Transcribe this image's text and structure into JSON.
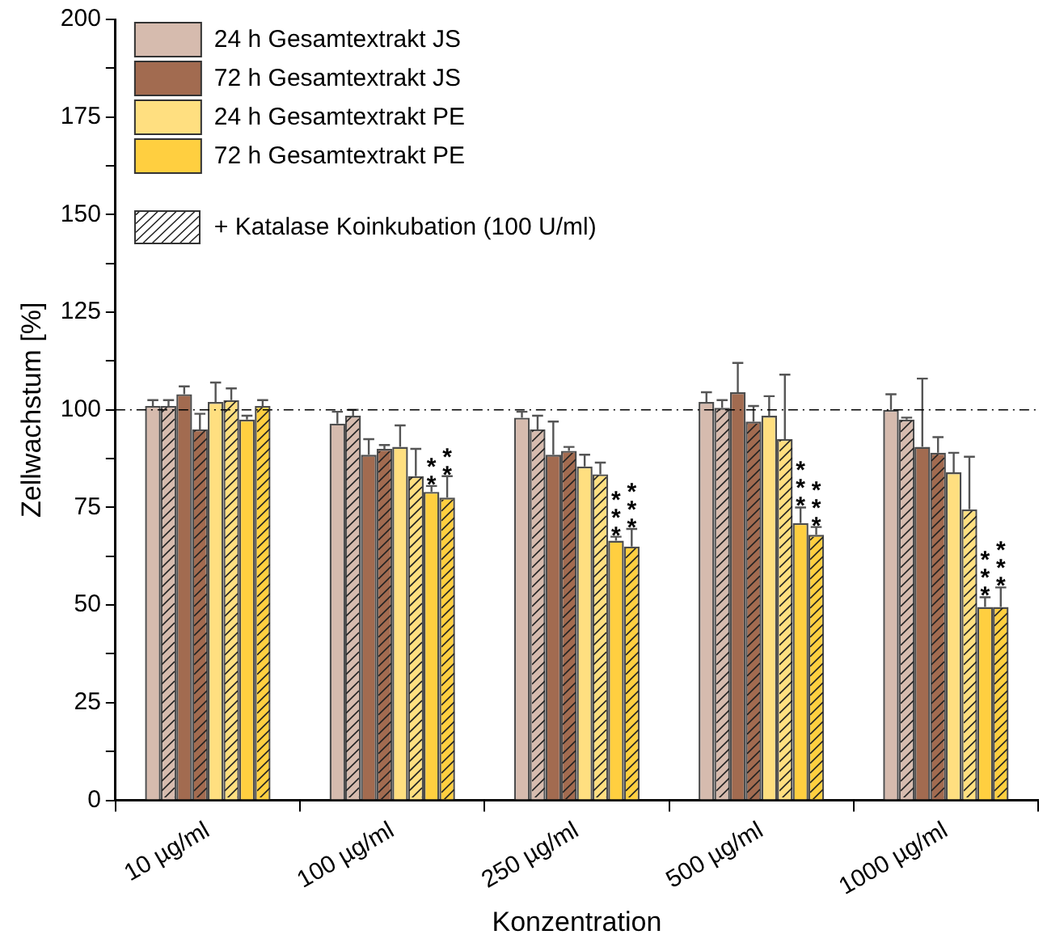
{
  "chart_data": {
    "type": "bar",
    "xlabel": "Konzentration",
    "ylabel": "Zellwachstum [%]",
    "categories": [
      "10 µg/ml",
      "100 µg/ml",
      "250 µg/ml",
      "500 µg/ml",
      "1000 µg/ml"
    ],
    "ylim": [
      0,
      200
    ],
    "yticks": [
      0,
      {
        "value": 12.5,
        "label": null
      },
      25,
      {
        "value": 37.5,
        "label": null
      },
      50,
      {
        "value": 62.5,
        "label": null
      },
      75,
      {
        "value": 87.5,
        "label": null
      },
      100,
      {
        "value": 112.5,
        "label": null
      },
      125,
      {
        "value": 137.5,
        "label": null
      },
      150,
      {
        "value": 162.5,
        "label": null
      },
      175,
      {
        "value": 187.5,
        "label": null
      },
      200
    ],
    "legend": "top left",
    "grid": false,
    "annotations": [
      "+ Katalase Koinkubation (100 U/ml)"
    ],
    "ref_lines": [
      {
        "axis": "y",
        "value": 100,
        "color": "#000000",
        "line_style": "dashed"
      }
    ],
    "series": [
      {
        "name": "24 h Gesamtextrakt JS",
        "color": "#d6bbae",
        "values": [
          101,
          96.5,
          98,
          102,
          100
        ],
        "errors": [
          [
            101,
            102.5
          ],
          [
            96.5,
            99.5
          ],
          [
            98,
            99.5
          ],
          [
            102,
            104.5
          ],
          [
            100,
            104
          ]
        ]
      },
      {
        "color": "#d6bbae",
        "values": [
          101,
          98.5,
          95,
          100.5,
          97.5
        ],
        "errors": [
          [
            101,
            102.5
          ],
          [
            98.5,
            100
          ],
          [
            95,
            98.5
          ],
          [
            100.5,
            102.5
          ],
          [
            97.5,
            98
          ]
        ]
      },
      {
        "name": "72 h Gesamtextrakt JS",
        "color": "#a26b50",
        "values": [
          104,
          88.5,
          88.5,
          104.5,
          90.5
        ],
        "errors": [
          [
            104,
            106
          ],
          [
            88.5,
            92.5
          ],
          [
            88.5,
            97
          ],
          [
            104.5,
            112
          ],
          [
            90.5,
            108
          ]
        ]
      },
      {
        "color": "#a26b50",
        "values": [
          95,
          90,
          89.5,
          97,
          89
        ],
        "errors": [
          [
            95,
            99
          ],
          [
            90,
            91
          ],
          [
            89.5,
            90.5
          ],
          [
            97,
            101
          ],
          [
            89,
            93
          ]
        ]
      },
      {
        "name": "24 h Gesamtextrakt PE",
        "color": "#ffdf80",
        "values": [
          102,
          90.5,
          85.5,
          98.5,
          84
        ],
        "errors": [
          [
            102,
            107
          ],
          [
            90.5,
            96
          ],
          [
            85.5,
            88.5
          ],
          [
            98.5,
            103.5
          ],
          [
            84,
            89
          ]
        ]
      },
      {
        "color": "#ffdf80",
        "values": [
          102.5,
          83,
          83.5,
          92.5,
          74.5
        ],
        "errors": [
          [
            102.5,
            105.5
          ],
          [
            83,
            90
          ],
          [
            83.5,
            86.5
          ],
          [
            92.5,
            109
          ],
          [
            74.5,
            88
          ]
        ]
      },
      {
        "name": "72 h Gesamtextrakt PE",
        "color": "#ffcf40",
        "values": [
          97.5,
          79,
          66.5,
          71,
          49.5
        ],
        "errors": [
          [
            97.5,
            98.5
          ],
          [
            79,
            80.5
          ],
          [
            66.5,
            67.5
          ],
          [
            71,
            75
          ],
          [
            49.5,
            52
          ]
        ],
        "value_labels": [
          null,
          "**",
          "***",
          "***",
          "***"
        ]
      },
      {
        "color": "#ffcf40",
        "values": [
          101,
          77.5,
          65,
          68,
          49.5
        ],
        "errors": [
          [
            101,
            102.5
          ],
          [
            77.5,
            83
          ],
          [
            65,
            69.5
          ],
          [
            68,
            70
          ],
          [
            49.5,
            54.5
          ]
        ],
        "value_labels": [
          null,
          "**",
          "***",
          "***",
          "***"
        ]
      }
    ]
  }
}
